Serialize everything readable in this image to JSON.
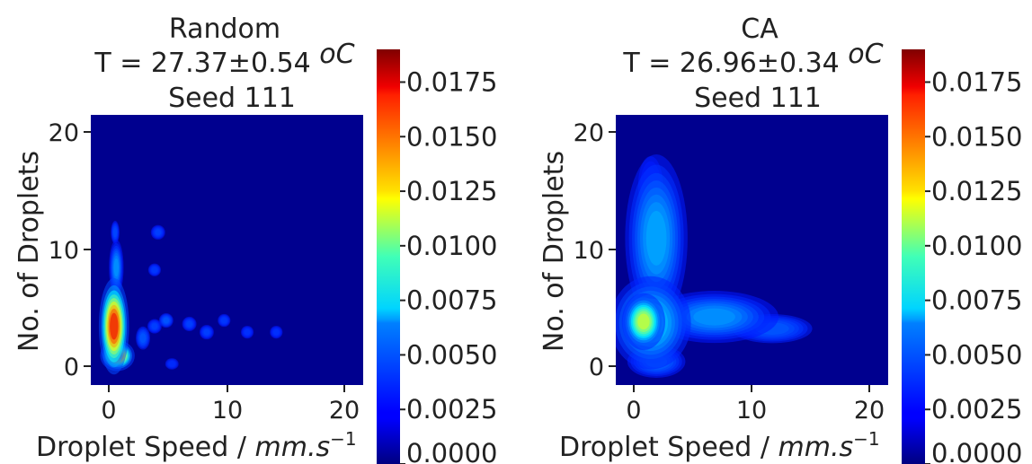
{
  "chart_data": [
    {
      "type": "heatmap",
      "title_lines": [
        "Random",
        "T = 27.37±0.54 ",
        "Seed 111"
      ],
      "title_unit": "oC",
      "xlabel_main": "Droplet Speed / ",
      "xlabel_unit": "mm.s",
      "xlabel_exp": "−1",
      "ylabel": "No. of Droplets",
      "xlim": [
        -1.5,
        22
      ],
      "ylim": [
        -1.5,
        21.5
      ],
      "xticks": [
        "0",
        "10",
        "20"
      ],
      "yticks": [
        "0",
        "10",
        "20"
      ],
      "colormap": "jet",
      "background_color": "#00008f",
      "density_peaks": [
        {
          "x": 0.5,
          "y": 3.5,
          "density": 0.0185,
          "spread_x": 0.7,
          "spread_y": 2.2
        },
        {
          "x": 0.8,
          "y": 1.0,
          "density": 0.016,
          "spread_x": 0.8,
          "spread_y": 0.7
        },
        {
          "x": 0.7,
          "y": 8.5,
          "density": 0.004,
          "spread_x": 0.4,
          "spread_y": 1.5
        },
        {
          "x": 0.6,
          "y": 11.5,
          "density": 0.0022,
          "spread_x": 0.3,
          "spread_y": 0.8
        },
        {
          "x": 3.0,
          "y": 2.5,
          "density": 0.0025,
          "spread_x": 0.5,
          "spread_y": 0.8
        },
        {
          "x": 4.0,
          "y": 3.5,
          "density": 0.002,
          "spread_x": 0.5,
          "spread_y": 0.5
        },
        {
          "x": 5.0,
          "y": 4.0,
          "density": 0.0025,
          "spread_x": 0.5,
          "spread_y": 0.5
        },
        {
          "x": 4.3,
          "y": 11.5,
          "density": 0.002,
          "spread_x": 0.5,
          "spread_y": 0.5
        },
        {
          "x": 4.0,
          "y": 8.3,
          "density": 0.0018,
          "spread_x": 0.5,
          "spread_y": 0.5
        },
        {
          "x": 7.0,
          "y": 3.7,
          "density": 0.002,
          "spread_x": 0.5,
          "spread_y": 0.5
        },
        {
          "x": 8.5,
          "y": 3.0,
          "density": 0.002,
          "spread_x": 0.5,
          "spread_y": 0.5
        },
        {
          "x": 10.0,
          "y": 4.0,
          "density": 0.0018,
          "spread_x": 0.5,
          "spread_y": 0.5
        },
        {
          "x": 12.0,
          "y": 3.0,
          "density": 0.0016,
          "spread_x": 0.5,
          "spread_y": 0.5
        },
        {
          "x": 14.5,
          "y": 3.0,
          "density": 0.0016,
          "spread_x": 0.5,
          "spread_y": 0.5
        },
        {
          "x": 5.5,
          "y": 0.3,
          "density": 0.0015,
          "spread_x": 0.6,
          "spread_y": 0.5
        }
      ],
      "colorbar": {
        "min": 0.0,
        "max": 0.019,
        "ticks": [
          "0.0000",
          "0.0025",
          "0.0050",
          "0.0075",
          "0.0100",
          "0.0125",
          "0.0150",
          "0.0175"
        ],
        "tick_values": [
          0.0,
          0.0025,
          0.005,
          0.0075,
          0.01,
          0.0125,
          0.015,
          0.0175
        ]
      }
    },
    {
      "type": "heatmap",
      "title_lines": [
        "CA",
        "T = 26.96±0.34 ",
        "Seed 111"
      ],
      "title_unit": "oC",
      "xlabel_main": "Droplet Speed / ",
      "xlabel_unit": "mm.s",
      "xlabel_exp": "−1",
      "ylabel": "No. of Droplets",
      "xlim": [
        -1.5,
        22
      ],
      "ylim": [
        -1.5,
        21.5
      ],
      "xticks": [
        "0",
        "10",
        "20"
      ],
      "yticks": [
        "0",
        "10",
        "20"
      ],
      "colormap": "jet",
      "background_color": "#00008f",
      "density_peaks": [
        {
          "x": 0.9,
          "y": 3.9,
          "density": 0.0115,
          "spread_x": 1.0,
          "spread_y": 1.3
        },
        {
          "x": 1.5,
          "y": 3.8,
          "density": 0.0055,
          "spread_x": 2.2,
          "spread_y": 2.5
        },
        {
          "x": 2.0,
          "y": 11.0,
          "density": 0.0045,
          "spread_x": 1.7,
          "spread_y": 4.5
        },
        {
          "x": 1.5,
          "y": 15.5,
          "density": 0.0012,
          "spread_x": 1.3,
          "spread_y": 3.0
        },
        {
          "x": 7.0,
          "y": 4.3,
          "density": 0.004,
          "spread_x": 3.5,
          "spread_y": 1.4
        },
        {
          "x": 12.0,
          "y": 3.3,
          "density": 0.0025,
          "spread_x": 2.8,
          "spread_y": 1.0
        },
        {
          "x": 2.0,
          "y": 0.5,
          "density": 0.003,
          "spread_x": 1.8,
          "spread_y": 1.0
        }
      ],
      "colorbar": {
        "min": 0.0,
        "max": 0.019,
        "ticks": [
          "0.0000",
          "0.0025",
          "0.0050",
          "0.0075",
          "0.0100",
          "0.0125",
          "0.0150",
          "0.0175"
        ],
        "tick_values": [
          0.0,
          0.0025,
          0.005,
          0.0075,
          0.01,
          0.0125,
          0.015,
          0.0175
        ]
      }
    }
  ]
}
